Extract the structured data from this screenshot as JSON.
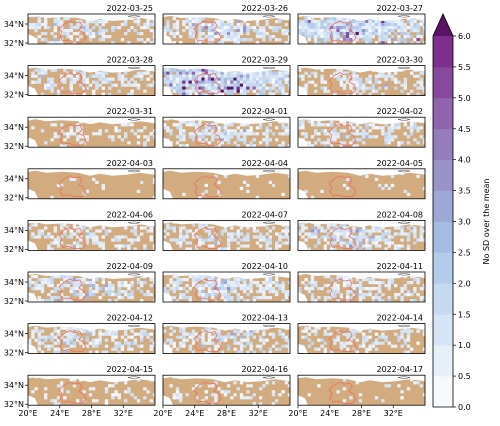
{
  "chart_data": {
    "type": "heatmap",
    "title": "",
    "panel_dates": [
      "2022-03-25",
      "2022-03-26",
      "2022-03-27",
      "2022-03-28",
      "2022-03-29",
      "2022-03-30",
      "2022-03-31",
      "2022-04-01",
      "2022-04-02",
      "2022-04-03",
      "2022-04-04",
      "2022-04-05",
      "2022-04-06",
      "2022-04-07",
      "2022-04-08",
      "2022-04-09",
      "2022-04-10",
      "2022-04-11",
      "2022-04-12",
      "2022-04-13",
      "2022-04-14",
      "2022-04-15",
      "2022-04-16",
      "2022-04-17"
    ],
    "panel_anomaly_level": [
      0.35,
      0.45,
      0.75,
      0.3,
      0.85,
      0.3,
      0.1,
      0.35,
      0.3,
      0.05,
      0.03,
      0.05,
      0.25,
      0.3,
      0.45,
      0.4,
      0.45,
      0.3,
      0.35,
      0.35,
      0.25,
      0.1,
      0.1,
      0.05
    ],
    "lat_ticks": [
      "34°N",
      "32°N"
    ],
    "lon_ticks": [
      "20°E",
      "24°E",
      "28°E",
      "32°E"
    ],
    "colorbar": {
      "label": "No SD over the mean",
      "ticks": [
        "0.0",
        "0.5",
        "1.0",
        "1.5",
        "2.0",
        "2.5",
        "3.0",
        "3.5",
        "4.0",
        "4.5",
        "5.0",
        "5.5",
        "6.0"
      ],
      "vmin": 0.0,
      "vmax": 6.0,
      "extend": "max",
      "colors": [
        "#f6f8fc",
        "#e7eff9",
        "#d6e5f5",
        "#c5d9f0",
        "#b4cceb",
        "#a6bde3",
        "#9da8d7",
        "#9a93ca",
        "#957cbd",
        "#8f63ad",
        "#87499c",
        "#7c2f8c",
        "#5a1466"
      ]
    },
    "land_color": "#d2ab7f",
    "outline_color": "#ef6f5d"
  }
}
